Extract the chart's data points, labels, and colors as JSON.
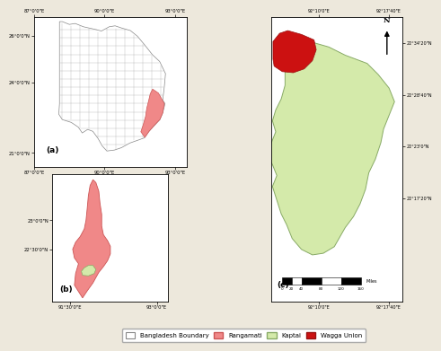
{
  "background_color": "#ede8dc",
  "panel_bg": "#ffffff",
  "main_bg": "#ffffff",
  "outer_bg": "#d0d0c8",
  "colors": {
    "bangladesh_fill": "#ffffff",
    "bangladesh_edge": "#888888",
    "district_line": "#aaaaaa",
    "rangamati_fill": "#f08888",
    "rangamati_edge": "#cc5555",
    "kaptai_fill": "#d4eaaa",
    "kaptai_edge": "#88aa66",
    "wagga_fill": "#cc1111",
    "wagga_edge": "#991111"
  },
  "legend": {
    "bangladesh_boundary": "Bangladesh Boundary",
    "rangamati": "Rangamati",
    "kaptai": "Kaptai",
    "wagga_union": "Wagga Union"
  },
  "panel_a": {
    "label": "(a)",
    "xlim": [
      87.0,
      93.5
    ],
    "ylim": [
      20.4,
      26.8
    ],
    "xticks": [
      87,
      90,
      93
    ],
    "xtick_labels": [
      "87°0'0\"E",
      "90°0'0\"E",
      "93°0'0\"E"
    ],
    "yticks": [
      21,
      24,
      26
    ],
    "ytick_labels": [
      "21°0'0\"N",
      "24°0'0\"N",
      "26°0'0\"N"
    ]
  },
  "panel_b": {
    "label": "(b)",
    "xlim": [
      91.2,
      93.2
    ],
    "ylim": [
      21.6,
      23.8
    ],
    "xticks": [
      91.5,
      93.0
    ],
    "xtick_labels": [
      "91°30'0\"E",
      "93°0'0\"E"
    ],
    "yticks": [
      22.5,
      23.0
    ],
    "ytick_labels": [
      "22°30'0\"N",
      "23°0'0\"N"
    ]
  },
  "panel_c": {
    "label": "(c)",
    "xlim": [
      92.08,
      92.32
    ],
    "ylim": [
      22.1,
      22.62
    ],
    "xtick_left": "92°10'0\"E",
    "xtick_right": "92°17'40\"E",
    "ytick_labels": [
      "22°34'20\"N",
      "22°28'40\"N",
      "22°23'0\"N",
      "22°17'20\"N"
    ],
    "scale_values": [
      0,
      20,
      40,
      80,
      120,
      160
    ],
    "scale_unit": "Miles",
    "north_label": "N"
  }
}
